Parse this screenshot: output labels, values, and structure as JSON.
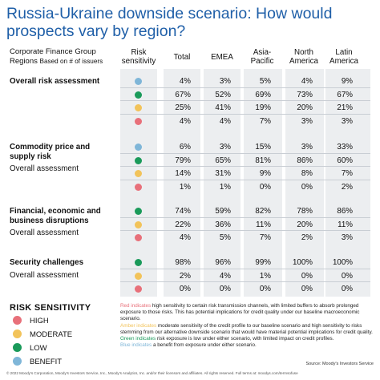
{
  "title": "Russia-Ukraine downside scenario: How would prospects vary by region?",
  "header": {
    "cfg_line1": "Corporate Finance Group",
    "cfg_line2": "Regions",
    "cfg_note": "Based on # of issuers",
    "risk_sensitivity_line1": "Risk",
    "risk_sensitivity_line2": "sensitivity",
    "columns": [
      {
        "line1": "Total",
        "line2": ""
      },
      {
        "line1": "EMEA",
        "line2": ""
      },
      {
        "line1": "Asia-",
        "line2": "Pacific"
      },
      {
        "line1": "North",
        "line2": "America"
      },
      {
        "line1": "Latin",
        "line2": "America"
      }
    ]
  },
  "colors": {
    "title": "#1f5fa8",
    "high": "#e8707a",
    "moderate": "#f2c35a",
    "low": "#1a9a5a",
    "benefit": "#7fb6d8",
    "table_bg": "#eceef0"
  },
  "chart_data": {
    "type": "table",
    "columns": [
      "Total",
      "EMEA",
      "Asia-Pacific",
      "North America",
      "Latin America"
    ],
    "categories": [
      {
        "name_lines": [
          "Overall risk assessment"
        ],
        "sub": "",
        "rows": [
          {
            "sensitivity": "benefit",
            "values": [
              "4%",
              "3%",
              "5%",
              "4%",
              "9%"
            ]
          },
          {
            "sensitivity": "low",
            "values": [
              "67%",
              "52%",
              "69%",
              "73%",
              "67%"
            ]
          },
          {
            "sensitivity": "moderate",
            "values": [
              "25%",
              "41%",
              "19%",
              "20%",
              "21%"
            ]
          },
          {
            "sensitivity": "high",
            "values": [
              "4%",
              "4%",
              "7%",
              "3%",
              "3%"
            ]
          }
        ]
      },
      {
        "name_lines": [
          "Commodity price and",
          "supply risk"
        ],
        "sub": "Overall assessment",
        "rows": [
          {
            "sensitivity": "benefit",
            "values": [
              "6%",
              "3%",
              "15%",
              "3%",
              "33%"
            ]
          },
          {
            "sensitivity": "low",
            "values": [
              "79%",
              "65%",
              "81%",
              "86%",
              "60%"
            ]
          },
          {
            "sensitivity": "moderate",
            "values": [
              "14%",
              "31%",
              "9%",
              "8%",
              "7%"
            ]
          },
          {
            "sensitivity": "high",
            "values": [
              "1%",
              "1%",
              "0%",
              "0%",
              "2%"
            ]
          }
        ]
      },
      {
        "name_lines": [
          "Financial, economic and",
          "business disruptions"
        ],
        "sub": "Overall assessment",
        "rows": [
          {
            "sensitivity": "low",
            "values": [
              "74%",
              "59%",
              "82%",
              "78%",
              "86%"
            ]
          },
          {
            "sensitivity": "moderate",
            "values": [
              "22%",
              "36%",
              "11%",
              "20%",
              "11%"
            ]
          },
          {
            "sensitivity": "high",
            "values": [
              "4%",
              "5%",
              "7%",
              "2%",
              "3%"
            ]
          }
        ]
      },
      {
        "name_lines": [
          "Security challenges"
        ],
        "sub": "Overall assessment",
        "rows": [
          {
            "sensitivity": "low",
            "values": [
              "98%",
              "96%",
              "99%",
              "100%",
              "100%"
            ]
          },
          {
            "sensitivity": "moderate",
            "values": [
              "2%",
              "4%",
              "1%",
              "0%",
              "0%"
            ]
          },
          {
            "sensitivity": "high",
            "values": [
              "0%",
              "0%",
              "0%",
              "0%",
              "0%"
            ]
          }
        ]
      }
    ]
  },
  "legend": {
    "title": "RISK SENSITIVITY",
    "items": [
      {
        "key": "high",
        "label": "HIGH"
      },
      {
        "key": "moderate",
        "label": "MODERATE"
      },
      {
        "key": "low",
        "label": "LOW"
      },
      {
        "key": "benefit",
        "label": "BENEFIT"
      }
    ]
  },
  "notes": [
    {
      "lead": "Red indicates",
      "color_key": "high",
      "text": " high sensitivity to certain risk transmission channels, with limited buffers to absorb prolonged exposure to those risks. This has potential implications for credit quality under our baseline macroeconomic scenario."
    },
    {
      "lead": "Amber indicates",
      "color_key": "moderate",
      "text": " moderate sensitivity of the credit profile to our baseline scenario and high sensitivity to risks stemming from our alternative downside scenario that would have material potential implications for credit quality."
    },
    {
      "lead": "Green indicates",
      "color_key": "low",
      "text": " risk exposure is low under either scenario, with limited impact on credit profiles."
    },
    {
      "lead": "Blue indicates",
      "color_key": "benefit",
      "text": " a benefit from exposure under either scenario."
    }
  ],
  "source": "Source: Moody's Investors Service",
  "footer": "© 2022 Moody's Corporation, Moody's Investors Service, Inc., Moody's Analytics, Inc. and/or their licensors and affiliates. All rights reserved. Full terms at: moodys.com/termsofuse"
}
